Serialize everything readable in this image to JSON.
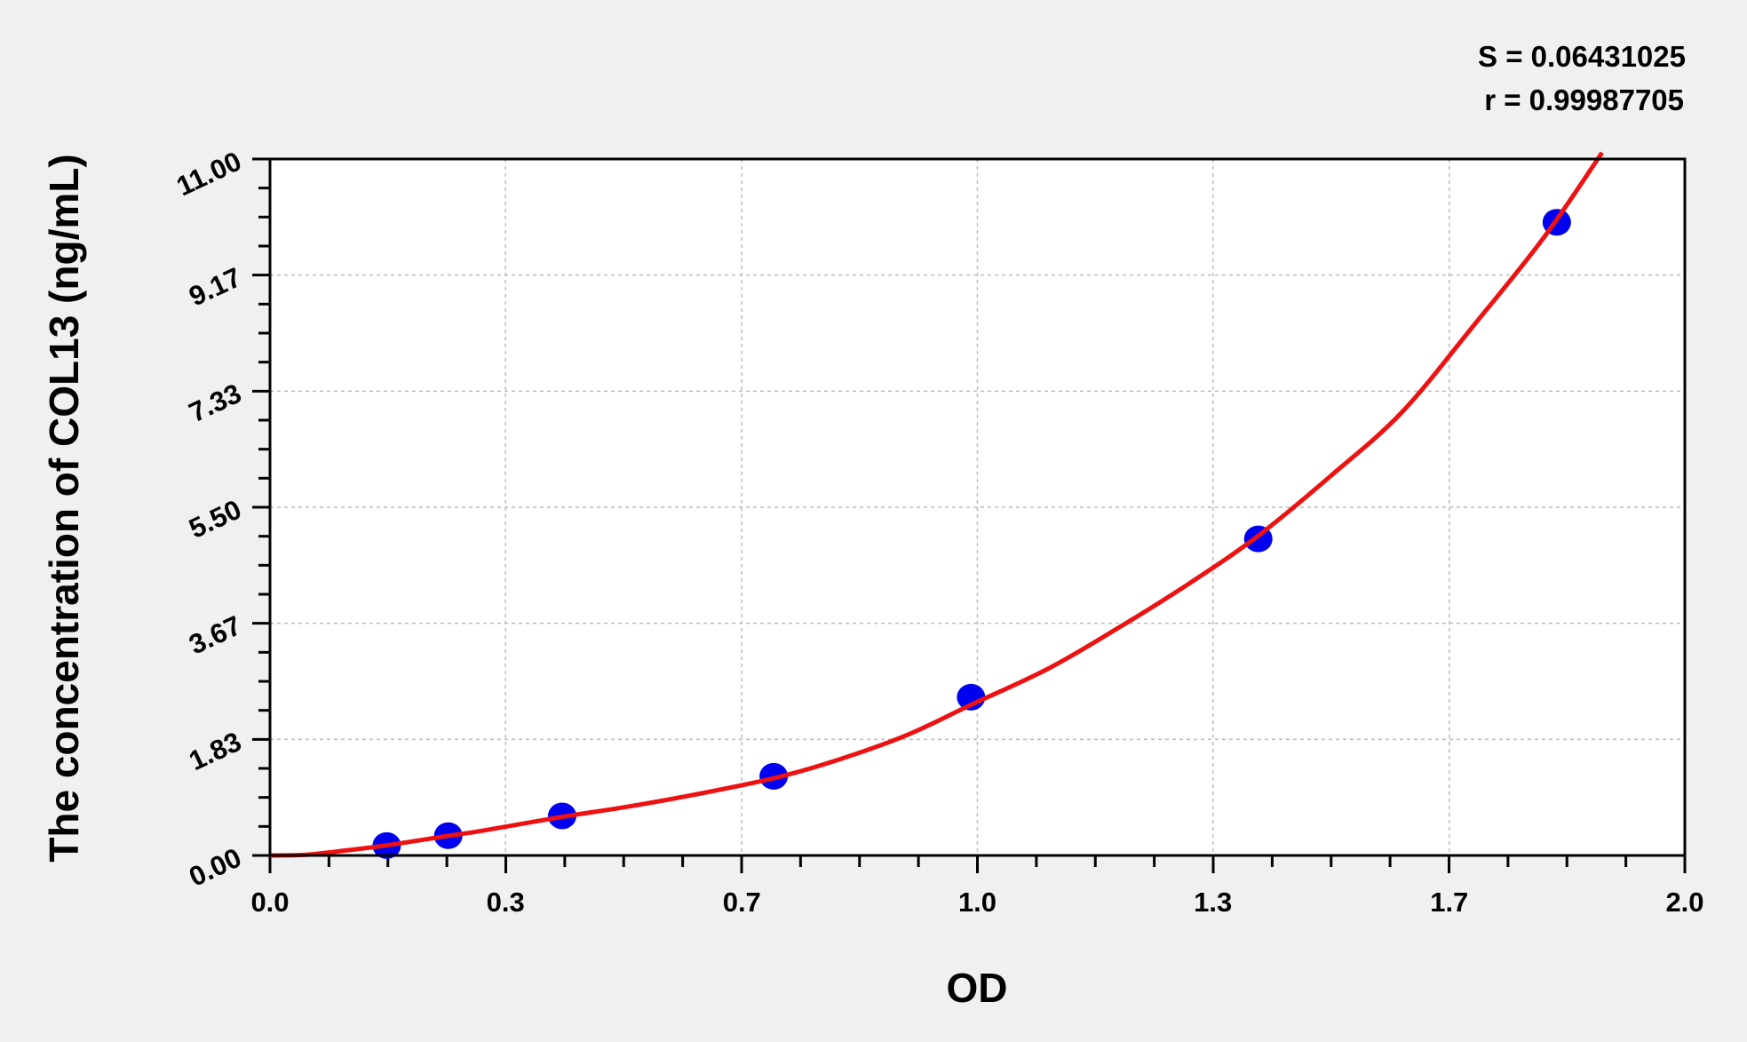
{
  "chart_data": {
    "type": "scatter",
    "title": "",
    "xlabel": "OD",
    "ylabel": "The concentration of COL13 (ng/mL)",
    "xlim": [
      0,
      2.0
    ],
    "ylim": [
      0,
      11.0
    ],
    "x_ticks": [
      0,
      0.333,
      0.667,
      1.0,
      1.333,
      1.667,
      2.0
    ],
    "x_tick_labels": [
      "0.0",
      "0.3",
      "0.7",
      "1.0",
      "1.3",
      "1.7",
      "2.0"
    ],
    "y_ticks": [
      0,
      1.833,
      3.667,
      5.5,
      7.333,
      9.167,
      11.0
    ],
    "y_tick_labels": [
      "0.00",
      "1.83",
      "3.67",
      "5.50",
      "7.33",
      "9.17",
      "11.00"
    ],
    "grid": true,
    "annotations": [
      "S = 0.06431025",
      "r = 0.99987705"
    ],
    "series": [
      {
        "type": "scatter",
        "color": "#0000ee",
        "x": [
          0.165,
          0.252,
          0.413,
          0.712,
          0.991,
          1.397,
          1.819
        ],
        "y": [
          0.156,
          0.3125,
          0.625,
          1.25,
          2.5,
          5.0,
          10.0
        ]
      },
      {
        "type": "line",
        "color": "#ee1111",
        "x": [
          0,
          0.05,
          0.1,
          0.165,
          0.252,
          0.3,
          0.413,
          0.5,
          0.6,
          0.712,
          0.8,
          0.9,
          0.991,
          1.1,
          1.2,
          1.3,
          1.397,
          1.5,
          1.6,
          1.7,
          1.8,
          1.883
        ],
        "y": [
          0,
          0.01,
          0.07,
          0.16,
          0.31,
          0.39,
          0.61,
          0.76,
          0.96,
          1.22,
          1.5,
          1.9,
          2.38,
          2.95,
          3.6,
          4.3,
          5.05,
          6.0,
          7.0,
          8.35,
          9.75,
          11.1
        ]
      }
    ]
  }
}
